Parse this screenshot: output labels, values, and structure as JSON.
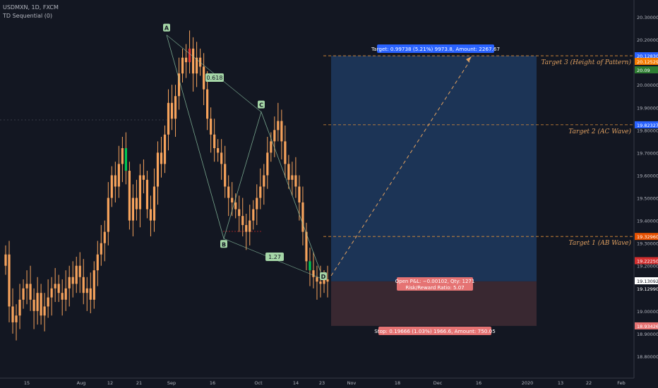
{
  "header": {
    "symbol": "USDMXN, 1D, FXCM",
    "indicator": "TD Sequential (0)"
  },
  "colors": {
    "background": "#131722",
    "candle": "#f7a35c",
    "up_signal": "#26a69a",
    "green_bar": "#00c853",
    "red_bar": "#e53935",
    "pattern": "#90c8a8",
    "target_zone": "#1e3a5f",
    "stop_zone": "#3e2a33",
    "target_label": "#2962ff",
    "stop_label": "#e57373",
    "fib_label": "#a5d6a7",
    "text": "#b2b5be"
  },
  "chart_data": {
    "type": "candlestick",
    "title": "USDMXN, 1D, FXCM",
    "ylim": [
      18.75,
      20.33
    ],
    "y_ticks": [
      "20.30000",
      "20.20000",
      "20.10000",
      "20.00000",
      "19.90000",
      "19.80000",
      "19.70000",
      "19.60000",
      "19.50000",
      "19.40000",
      "19.30000",
      "19.20000",
      "19.10000",
      "19.00000",
      "18.90000",
      "18.80000"
    ],
    "x_ticks": [
      "15",
      "Aug",
      "12",
      "21",
      "Sep",
      "16",
      "Oct",
      "14",
      "23",
      "Nov",
      "18",
      "Dec",
      "16",
      "2020",
      "13",
      "22",
      "Feb"
    ],
    "closes": [
      19.25,
      19.02,
      18.95,
      18.98,
      19.05,
      19.1,
      19.12,
      19.05,
      19.0,
      19.08,
      18.98,
      19.02,
      19.06,
      19.1,
      19.12,
      19.08,
      19.05,
      19.1,
      19.15,
      19.12,
      19.2,
      19.15,
      19.08,
      19.1,
      19.05,
      19.18,
      19.25,
      19.3,
      19.35,
      19.5,
      19.6,
      19.55,
      19.65,
      19.72,
      19.62,
      19.4,
      19.5,
      19.45,
      19.6,
      19.58,
      19.45,
      19.4,
      19.55,
      19.7,
      19.65,
      19.78,
      19.92,
      19.85,
      19.95,
      20.05,
      20.12,
      20.1,
      20.16,
      20.05,
      20.12,
      20.08,
      19.98,
      19.85,
      19.78,
      19.72,
      19.7,
      19.65,
      19.55,
      19.5,
      19.48,
      19.45,
      19.42,
      19.38,
      19.35,
      19.4,
      19.45,
      19.5,
      19.55,
      19.6,
      19.7,
      19.75,
      19.8,
      19.84,
      19.75,
      19.65,
      19.58,
      19.6,
      19.55,
      19.48,
      19.35,
      19.22,
      19.18,
      19.15,
      19.13,
      19.12,
      19.14,
      19.13
    ],
    "pattern_points": [
      {
        "label": "A",
        "price": 20.22
      },
      {
        "label": "B",
        "price": 19.32
      },
      {
        "label": "C",
        "price": 19.88
      },
      {
        "label": "D",
        "price": 19.14
      }
    ],
    "fib_labels": [
      "0.618",
      "1.27"
    ],
    "levels": [
      {
        "price": 20.1283,
        "label": "Target 3 (Height of Pattern)",
        "tag": "20.12830",
        "tag_color": "#2962ff"
      },
      {
        "price": 19.82327,
        "label": "Target 2 (AC Wave)",
        "tag": "19.82327",
        "tag_color": "#2962ff"
      },
      {
        "price": 19.3296,
        "label": "Target 1 (AB Wave)",
        "tag": "19.32960",
        "tag_color": "#e65100"
      }
    ],
    "price_tags": [
      {
        "price": 20.12529,
        "text": "20.12529",
        "color": "#f57c00"
      },
      {
        "price": 20.09,
        "text": "20.09",
        "color": "#2e7d32"
      },
      {
        "price": 19.2225,
        "text": "19.22250",
        "color": "#d32f2f"
      },
      {
        "price": 19.13092,
        "text": "19.13092",
        "color": "#ffffff",
        "text_color": "#131722"
      },
      {
        "price": 19.1299,
        "text": "19.12990",
        "color": "#131722"
      },
      {
        "price": 18.93426,
        "text": "18.93426",
        "color": "#e57373"
      }
    ],
    "position": {
      "entry": 19.13092,
      "target": 20.1283,
      "stop": 18.93426,
      "target_label": "Target: 0.99738 (5.21%) 9973.8, Amount: 2267.67",
      "pnl_label": "Open P&L: −0.00102, Qty: 1271",
      "rr_label": "Risk/Reward Ratio: 5.07",
      "stop_label": "Stop: 0.19666 (1.03%) 1966.6, Amount: 750.05"
    }
  }
}
